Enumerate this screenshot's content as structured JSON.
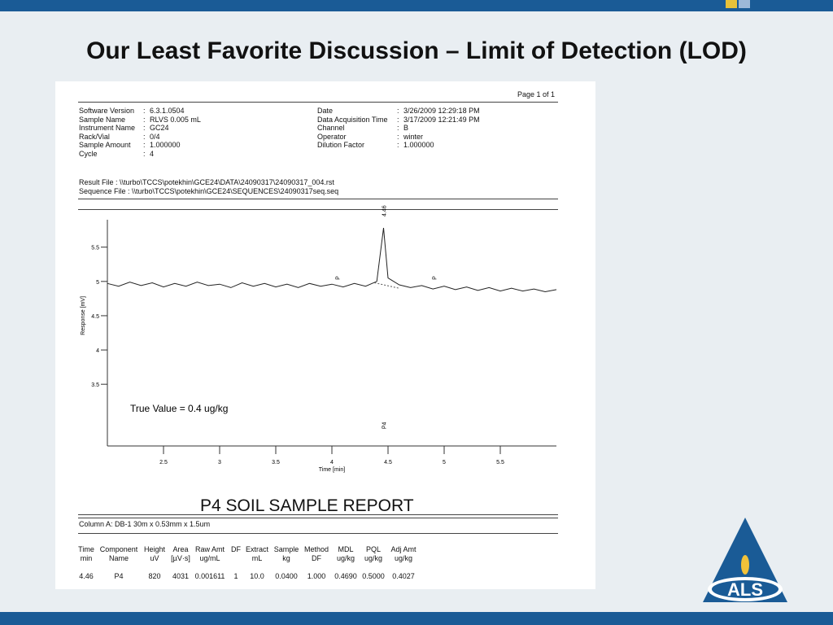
{
  "slide_title": "Our Least Favorite Discussion – Limit of Detection (LOD)",
  "report": {
    "page": "Page 1 of 1",
    "header_left": [
      {
        "label": "Software Version",
        "value": "6.3.1.0504"
      },
      {
        "label": "Sample Name",
        "value": "RLVS 0.005 mL"
      },
      {
        "label": "Instrument Name",
        "value": "GC24"
      },
      {
        "label": "Rack/Vial",
        "value": "0/4"
      },
      {
        "label": "Sample Amount",
        "value": "1.000000"
      },
      {
        "label": "Cycle",
        "value": "4"
      }
    ],
    "header_right": [
      {
        "label": "Date",
        "value": "3/26/2009 12:29:18 PM"
      },
      {
        "label": "Data Acquisition Time",
        "value": "3/17/2009 12:21:49 PM"
      },
      {
        "label": "Channel",
        "value": "B"
      },
      {
        "label": "Operator",
        "value": "winter"
      },
      {
        "label": "Dilution Factor",
        "value": "1.000000"
      }
    ],
    "result_file": "Result File : \\\\turbo\\TCCS\\potekhin\\GCE24\\DATA\\24090317\\24090317_004.rst",
    "sequence_file": "Sequence File : \\\\turbo\\TCCS\\potekhin\\GCE24\\SEQUENCES\\24090317seq.seq",
    "report_title": "P4 SOIL SAMPLE REPORT",
    "column": "Column A: DB-1 30m x 0.53mm x 1.5um",
    "table": {
      "headers": [
        [
          "Time",
          "min"
        ],
        [
          "Component",
          "Name"
        ],
        [
          "Height",
          "uV"
        ],
        [
          "Area",
          "[µV·s]"
        ],
        [
          "Raw Amt",
          "ug/mL"
        ],
        [
          "DF"
        ],
        [
          "Extract",
          "mL"
        ],
        [
          "Sample",
          "kg"
        ],
        [
          "Method",
          "DF"
        ],
        [
          "MDL",
          "ug/kg"
        ],
        [
          "PQL",
          "ug/kg"
        ],
        [
          "Adj Amt",
          "ug/kg"
        ]
      ],
      "rows": [
        [
          "4.46",
          "P4",
          "820",
          "4031",
          "0.001611",
          "1",
          "10.0",
          "0.0400",
          "1.000",
          "0.4690",
          "0.5000",
          "0.4027"
        ]
      ]
    }
  },
  "chart_data": {
    "type": "line",
    "x_label": "Time [min]",
    "y_label": "Response [mV]",
    "color": "#222222",
    "x": [
      2.0,
      2.1,
      2.2,
      2.3,
      2.4,
      2.5,
      2.6,
      2.7,
      2.8,
      2.9,
      3.0,
      3.1,
      3.2,
      3.3,
      3.4,
      3.5,
      3.6,
      3.7,
      3.8,
      3.9,
      4.0,
      4.1,
      4.2,
      4.3,
      4.4,
      4.46,
      4.5,
      4.6,
      4.7,
      4.8,
      4.9,
      5.0,
      5.1,
      5.2,
      5.3,
      5.4,
      5.5,
      5.6,
      5.7,
      5.8,
      5.9,
      6.0
    ],
    "values": [
      4.97,
      4.93,
      4.99,
      4.94,
      4.98,
      4.92,
      4.97,
      4.93,
      4.99,
      4.94,
      4.96,
      4.91,
      4.98,
      4.93,
      4.97,
      4.92,
      4.96,
      4.91,
      4.97,
      4.93,
      4.96,
      4.92,
      4.97,
      4.93,
      5.0,
      5.78,
      5.05,
      4.95,
      4.91,
      4.94,
      4.89,
      4.93,
      4.88,
      4.92,
      4.87,
      4.91,
      4.86,
      4.9,
      4.86,
      4.89,
      4.85,
      4.88
    ],
    "xlim": [
      2.0,
      6.0
    ],
    "ylim": [
      2.6,
      5.9
    ],
    "xticks": [
      2.5,
      3.0,
      3.5,
      4.0,
      4.5,
      5.0,
      5.5
    ],
    "yticks": [
      3.5,
      4.0,
      4.5,
      5.0,
      5.5
    ],
    "annotations": [
      "True Value = 0.4 ug/kg",
      "4.46",
      "P4",
      "P",
      "P"
    ],
    "alt_label": "ALS"
  }
}
